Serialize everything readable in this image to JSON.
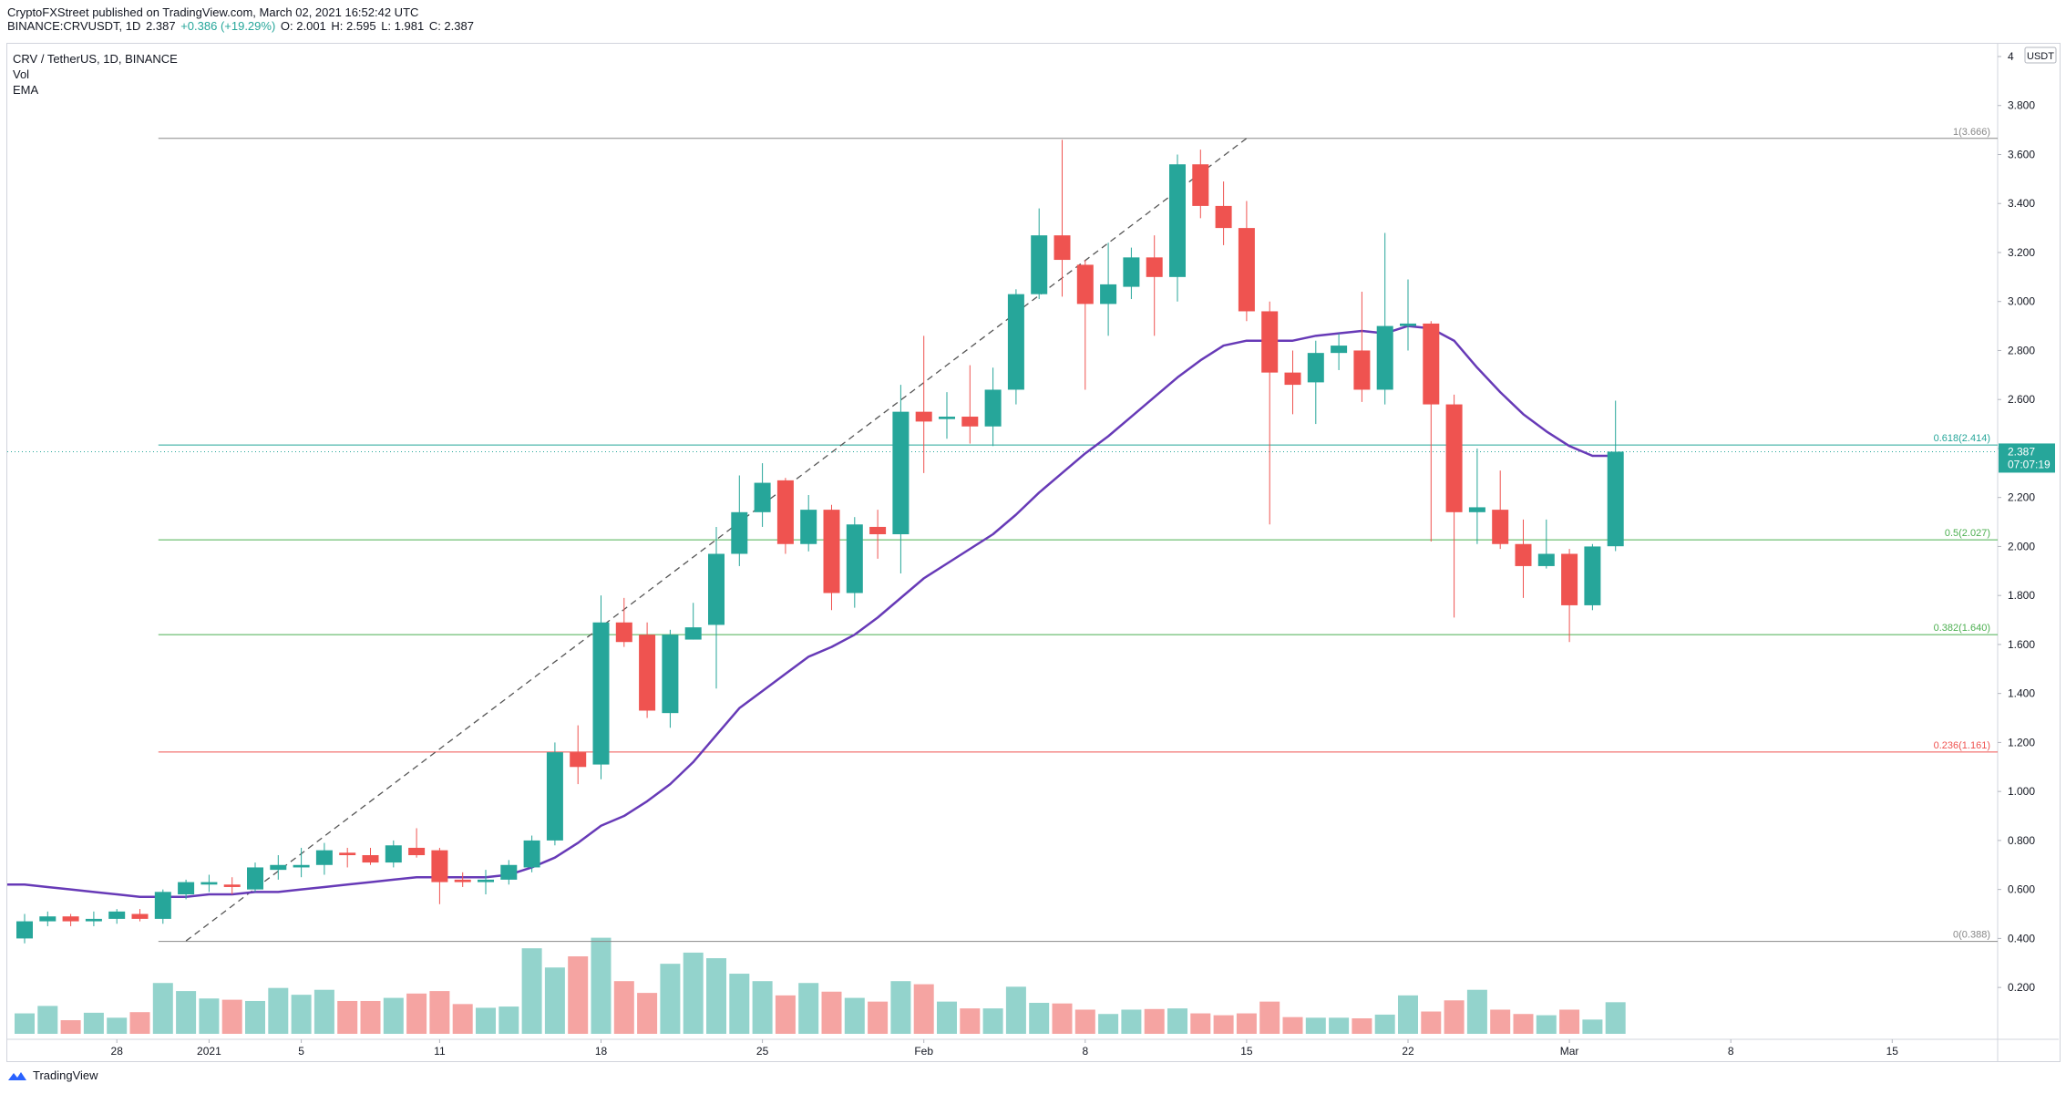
{
  "header": {
    "published_line": "CryptoFXStreet published on TradingView.com, March 02, 2021 16:52:42 UTC",
    "symbol_line": "BINANCE:CRVUSDT, 1D",
    "last": "2.387",
    "change": "+0.386 (+19.29%)",
    "open": "O: 2.001",
    "high": "H: 2.595",
    "low": "L: 1.981",
    "close": "C: 2.387"
  },
  "legend": {
    "title": "CRV / TetherUS, 1D, BINANCE",
    "vol": "Vol",
    "ema": "EMA"
  },
  "footer": {
    "brand": "TradingView"
  },
  "colors": {
    "up": "#26a69a",
    "down": "#ef5350",
    "vol_up": "#93d3cc",
    "vol_down": "#f5a4a2",
    "ema": "#673ab7",
    "fib_green": "#4caf50",
    "fib_red": "#ef5350",
    "fib_gray": "#888888",
    "fib_teal": "#26a69a"
  },
  "chart_data": {
    "type": "candlestick",
    "symbol": "CRV / TetherUS",
    "interval": "1D",
    "exchange": "BINANCE",
    "price_unit": "USDT",
    "ylim": [
      0.1,
      4.0
    ],
    "y_ticks": [
      "4",
      "3.800",
      "3.600",
      "3.400",
      "3.200",
      "3.000",
      "2.800",
      "2.600",
      "2.400",
      "2.200",
      "2.000",
      "1.800",
      "1.600",
      "1.400",
      "1.200",
      "1.000",
      "0.800",
      "0.600",
      "0.400",
      "0.200"
    ],
    "x_ticks": [
      {
        "label": "28",
        "index": 4
      },
      {
        "label": "2021",
        "index": 8
      },
      {
        "label": "5",
        "index": 12
      },
      {
        "label": "11",
        "index": 18
      },
      {
        "label": "18",
        "index": 25
      },
      {
        "label": "25",
        "index": 32
      },
      {
        "label": "Feb",
        "index": 39
      },
      {
        "label": "8",
        "index": 46
      },
      {
        "label": "15",
        "index": 53
      },
      {
        "label": "22",
        "index": 60
      },
      {
        "label": "Mar",
        "index": 67
      },
      {
        "label": "8",
        "index": 74
      },
      {
        "label": "15",
        "index": 81
      }
    ],
    "candles": [
      {
        "o": 0.4,
        "h": 0.5,
        "l": 0.38,
        "c": 0.47
      },
      {
        "o": 0.47,
        "h": 0.51,
        "l": 0.45,
        "c": 0.49
      },
      {
        "o": 0.49,
        "h": 0.5,
        "l": 0.45,
        "c": 0.47
      },
      {
        "o": 0.47,
        "h": 0.51,
        "l": 0.45,
        "c": 0.48
      },
      {
        "o": 0.48,
        "h": 0.52,
        "l": 0.46,
        "c": 0.51
      },
      {
        "o": 0.5,
        "h": 0.52,
        "l": 0.47,
        "c": 0.48
      },
      {
        "o": 0.48,
        "h": 0.6,
        "l": 0.46,
        "c": 0.59
      },
      {
        "o": 0.58,
        "h": 0.64,
        "l": 0.56,
        "c": 0.63
      },
      {
        "o": 0.62,
        "h": 0.66,
        "l": 0.59,
        "c": 0.63
      },
      {
        "o": 0.62,
        "h": 0.65,
        "l": 0.58,
        "c": 0.61
      },
      {
        "o": 0.6,
        "h": 0.71,
        "l": 0.59,
        "c": 0.69
      },
      {
        "o": 0.68,
        "h": 0.74,
        "l": 0.64,
        "c": 0.7
      },
      {
        "o": 0.69,
        "h": 0.77,
        "l": 0.65,
        "c": 0.7
      },
      {
        "o": 0.7,
        "h": 0.79,
        "l": 0.66,
        "c": 0.76
      },
      {
        "o": 0.75,
        "h": 0.77,
        "l": 0.69,
        "c": 0.74
      },
      {
        "o": 0.74,
        "h": 0.77,
        "l": 0.7,
        "c": 0.71
      },
      {
        "o": 0.71,
        "h": 0.8,
        "l": 0.69,
        "c": 0.78
      },
      {
        "o": 0.77,
        "h": 0.85,
        "l": 0.73,
        "c": 0.74
      },
      {
        "o": 0.76,
        "h": 0.77,
        "l": 0.54,
        "c": 0.63
      },
      {
        "o": 0.64,
        "h": 0.67,
        "l": 0.61,
        "c": 0.63
      },
      {
        "o": 0.63,
        "h": 0.68,
        "l": 0.58,
        "c": 0.64
      },
      {
        "o": 0.64,
        "h": 0.72,
        "l": 0.62,
        "c": 0.7
      },
      {
        "o": 0.69,
        "h": 0.82,
        "l": 0.67,
        "c": 0.8
      },
      {
        "o": 0.8,
        "h": 1.2,
        "l": 0.78,
        "c": 1.16
      },
      {
        "o": 1.16,
        "h": 1.27,
        "l": 1.03,
        "c": 1.1
      },
      {
        "o": 1.11,
        "h": 1.8,
        "l": 1.05,
        "c": 1.69
      },
      {
        "o": 1.69,
        "h": 1.79,
        "l": 1.59,
        "c": 1.61
      },
      {
        "o": 1.64,
        "h": 1.69,
        "l": 1.3,
        "c": 1.33
      },
      {
        "o": 1.32,
        "h": 1.66,
        "l": 1.26,
        "c": 1.64
      },
      {
        "o": 1.62,
        "h": 1.77,
        "l": 1.62,
        "c": 1.67
      },
      {
        "o": 1.68,
        "h": 2.08,
        "l": 1.42,
        "c": 1.97
      },
      {
        "o": 1.97,
        "h": 2.29,
        "l": 1.92,
        "c": 2.14
      },
      {
        "o": 2.14,
        "h": 2.34,
        "l": 2.08,
        "c": 2.26
      },
      {
        "o": 2.27,
        "h": 2.28,
        "l": 1.97,
        "c": 2.01
      },
      {
        "o": 2.01,
        "h": 2.21,
        "l": 1.98,
        "c": 2.15
      },
      {
        "o": 2.15,
        "h": 2.17,
        "l": 1.74,
        "c": 1.81
      },
      {
        "o": 1.81,
        "h": 2.12,
        "l": 1.75,
        "c": 2.09
      },
      {
        "o": 2.08,
        "h": 2.15,
        "l": 1.95,
        "c": 2.05
      },
      {
        "o": 2.05,
        "h": 2.66,
        "l": 1.89,
        "c": 2.55
      },
      {
        "o": 2.55,
        "h": 2.86,
        "l": 2.3,
        "c": 2.51
      },
      {
        "o": 2.52,
        "h": 2.63,
        "l": 2.44,
        "c": 2.53
      },
      {
        "o": 2.53,
        "h": 2.74,
        "l": 2.42,
        "c": 2.49
      },
      {
        "o": 2.49,
        "h": 2.73,
        "l": 2.41,
        "c": 2.64
      },
      {
        "o": 2.64,
        "h": 3.05,
        "l": 2.58,
        "c": 3.03
      },
      {
        "o": 3.03,
        "h": 3.38,
        "l": 3.01,
        "c": 3.27
      },
      {
        "o": 3.27,
        "h": 3.66,
        "l": 3.02,
        "c": 3.17
      },
      {
        "o": 3.15,
        "h": 3.17,
        "l": 2.64,
        "c": 2.99
      },
      {
        "o": 2.99,
        "h": 3.24,
        "l": 2.86,
        "c": 3.07
      },
      {
        "o": 3.06,
        "h": 3.22,
        "l": 3.01,
        "c": 3.18
      },
      {
        "o": 3.18,
        "h": 3.27,
        "l": 2.86,
        "c": 3.1
      },
      {
        "o": 3.1,
        "h": 3.6,
        "l": 3.0,
        "c": 3.56
      },
      {
        "o": 3.56,
        "h": 3.62,
        "l": 3.34,
        "c": 3.39
      },
      {
        "o": 3.39,
        "h": 3.49,
        "l": 3.23,
        "c": 3.3
      },
      {
        "o": 3.3,
        "h": 3.41,
        "l": 2.92,
        "c": 2.96
      },
      {
        "o": 2.96,
        "h": 3.0,
        "l": 2.09,
        "c": 2.71
      },
      {
        "o": 2.71,
        "h": 2.8,
        "l": 2.54,
        "c": 2.66
      },
      {
        "o": 2.67,
        "h": 2.84,
        "l": 2.5,
        "c": 2.79
      },
      {
        "o": 2.79,
        "h": 2.87,
        "l": 2.72,
        "c": 2.82
      },
      {
        "o": 2.8,
        "h": 3.04,
        "l": 2.59,
        "c": 2.64
      },
      {
        "o": 2.64,
        "h": 3.28,
        "l": 2.58,
        "c": 2.9
      },
      {
        "o": 2.9,
        "h": 3.09,
        "l": 2.8,
        "c": 2.91
      },
      {
        "o": 2.91,
        "h": 2.92,
        "l": 2.02,
        "c": 2.58
      },
      {
        "o": 2.58,
        "h": 2.62,
        "l": 1.71,
        "c": 2.14
      },
      {
        "o": 2.14,
        "h": 2.4,
        "l": 2.01,
        "c": 2.16
      },
      {
        "o": 2.15,
        "h": 2.31,
        "l": 1.99,
        "c": 2.01
      },
      {
        "o": 2.01,
        "h": 2.11,
        "l": 1.79,
        "c": 1.92
      },
      {
        "o": 1.92,
        "h": 2.11,
        "l": 1.91,
        "c": 1.97
      },
      {
        "o": 1.97,
        "h": 1.99,
        "l": 1.61,
        "c": 1.76
      },
      {
        "o": 1.76,
        "h": 2.01,
        "l": 1.74,
        "c": 2.0
      },
      {
        "o": 2.001,
        "h": 2.595,
        "l": 1.981,
        "c": 2.387
      }
    ],
    "volume_series_name": "Vol",
    "volume_relative": [
      0.33,
      0.45,
      0.22,
      0.34,
      0.26,
      0.35,
      0.82,
      0.69,
      0.57,
      0.55,
      0.53,
      0.74,
      0.63,
      0.71,
      0.53,
      0.53,
      0.58,
      0.65,
      0.69,
      0.48,
      0.42,
      0.44,
      1.38,
      1.07,
      1.25,
      1.55,
      0.85,
      0.66,
      1.13,
      1.31,
      1.22,
      0.97,
      0.85,
      0.62,
      0.82,
      0.68,
      0.58,
      0.52,
      0.85,
      0.8,
      0.52,
      0.41,
      0.41,
      0.76,
      0.5,
      0.49,
      0.39,
      0.32,
      0.39,
      0.4,
      0.41,
      0.33,
      0.3,
      0.33,
      0.52,
      0.27,
      0.26,
      0.26,
      0.25,
      0.31,
      0.62,
      0.36,
      0.54,
      0.71,
      0.39,
      0.32,
      0.3,
      0.39,
      0.23,
      0.51
    ],
    "ema_series_name": "EMA",
    "ema": [
      0.62,
      0.61,
      0.6,
      0.59,
      0.58,
      0.57,
      0.57,
      0.57,
      0.58,
      0.58,
      0.59,
      0.59,
      0.6,
      0.61,
      0.62,
      0.63,
      0.64,
      0.65,
      0.65,
      0.65,
      0.65,
      0.66,
      0.69,
      0.73,
      0.79,
      0.86,
      0.9,
      0.96,
      1.03,
      1.12,
      1.23,
      1.34,
      1.41,
      1.48,
      1.55,
      1.59,
      1.64,
      1.71,
      1.79,
      1.87,
      1.93,
      1.99,
      2.05,
      2.13,
      2.22,
      2.3,
      2.38,
      2.45,
      2.53,
      2.61,
      2.69,
      2.76,
      2.82,
      2.84,
      2.84,
      2.84,
      2.86,
      2.87,
      2.88,
      2.87,
      2.9,
      2.89,
      2.84,
      2.73,
      2.63,
      2.54,
      2.47,
      2.41,
      2.37,
      2.37
    ],
    "fibonacci": [
      {
        "label": "1(3.666)",
        "level": 3.666,
        "color": "#888888"
      },
      {
        "label": "0.618(2.414)",
        "level": 2.414,
        "color": "#26a69a"
      },
      {
        "label": "0.5(2.027)",
        "level": 2.027,
        "color": "#4caf50"
      },
      {
        "label": "0.382(1.640)",
        "level": 1.64,
        "color": "#4caf50"
      },
      {
        "label": "0.236(1.161)",
        "level": 1.161,
        "color": "#ef5350"
      },
      {
        "label": "0(0.388)",
        "level": 0.388,
        "color": "#888888"
      }
    ],
    "trendline": {
      "from": {
        "index": 7,
        "price": 0.39
      },
      "to": {
        "index": 53,
        "price": 3.666
      }
    },
    "current_price_label": "2.387",
    "countdown_label": "07:07:19",
    "axis_unit_label": "USDT"
  }
}
